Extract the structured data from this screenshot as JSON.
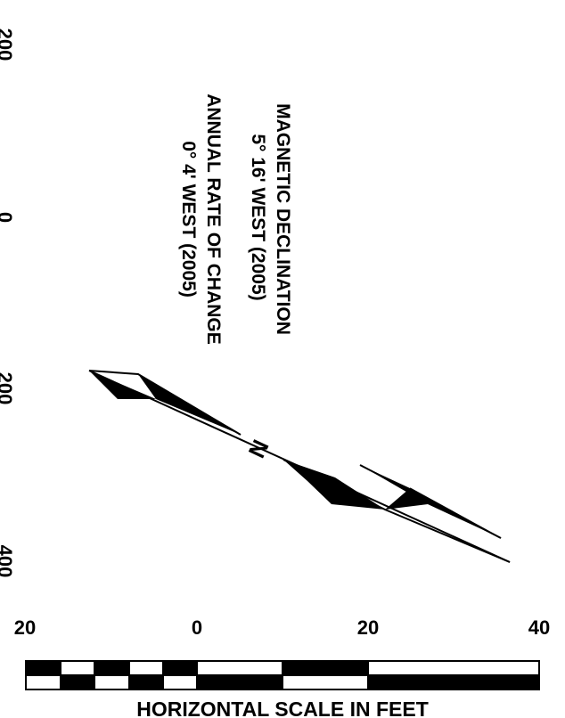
{
  "declination": {
    "title": "MAGNETIC DECLINATION",
    "value": "5° 16' WEST (2005)",
    "rate_title": "ANNUAL RATE OF CHANGE",
    "rate_value": "0° 4' WEST (2005)"
  },
  "north_arrow": {
    "label": "N"
  },
  "edge_labels": [
    "200",
    "0",
    "200",
    "400"
  ],
  "scale_bar": {
    "tick_labels": [
      "20",
      "0",
      "20",
      "40"
    ],
    "caption": "HORIZONTAL SCALE IN FEET"
  },
  "colors": {
    "ink": "#000000",
    "paper": "#ffffff"
  }
}
